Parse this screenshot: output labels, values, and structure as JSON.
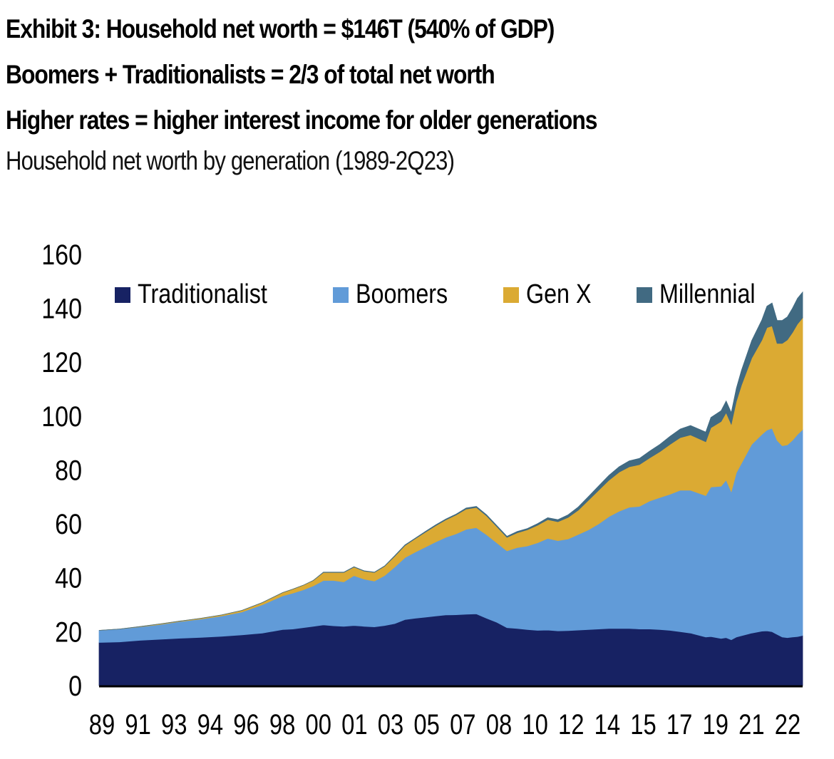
{
  "header": {
    "title_line1": "Exhibit 3: Household net worth = $146T (540% of GDP)",
    "title_line2": "Boomers + Traditionalists = 2/3 of total net worth",
    "title_line3": "Higher rates = higher interest income for older generations",
    "subtitle": "Household net worth by generation (1989-2Q23)"
  },
  "chart_data": {
    "type": "area",
    "stacked": true,
    "title": "Household net worth by generation (1989-2Q23)",
    "xlabel": "",
    "ylabel": "",
    "ylim": [
      0,
      160
    ],
    "yticks": [
      0,
      20,
      40,
      60,
      80,
      100,
      120,
      140,
      160
    ],
    "xtick_labels": [
      "89",
      "91",
      "93",
      "94",
      "96",
      "98",
      "00",
      "01",
      "03",
      "05",
      "07",
      "08",
      "10",
      "12",
      "14",
      "15",
      "17",
      "19",
      "21",
      "22"
    ],
    "xlim": [
      1989.0,
      2023.5
    ],
    "grid": false,
    "legend_position": "top",
    "x": [
      1989.0,
      1990.0,
      1991.0,
      1992.0,
      1993.0,
      1994.0,
      1995.0,
      1996.0,
      1997.0,
      1998.0,
      1998.5,
      1999.0,
      1999.5,
      2000.0,
      2000.5,
      2001.0,
      2001.5,
      2002.0,
      2002.5,
      2003.0,
      2003.5,
      2004.0,
      2004.5,
      2005.0,
      2005.5,
      2006.0,
      2006.5,
      2007.0,
      2007.5,
      2008.0,
      2008.5,
      2009.0,
      2009.5,
      2010.0,
      2010.5,
      2011.0,
      2011.5,
      2012.0,
      2012.5,
      2013.0,
      2013.5,
      2014.0,
      2014.5,
      2015.0,
      2015.5,
      2016.0,
      2016.5,
      2017.0,
      2017.5,
      2018.0,
      2018.75,
      2019.0,
      2019.5,
      2019.75,
      2020.0,
      2020.25,
      2020.5,
      2021.0,
      2021.5,
      2021.75,
      2022.0,
      2022.25,
      2022.5,
      2022.75,
      2023.0,
      2023.25,
      2023.5
    ],
    "series": [
      {
        "name": "Traditionalist",
        "color": "#172263",
        "values": [
          16.0,
          16.2,
          16.8,
          17.2,
          17.6,
          17.9,
          18.3,
          18.8,
          19.5,
          20.8,
          21.0,
          21.5,
          22.0,
          22.5,
          22.2,
          22.0,
          22.3,
          22.0,
          21.8,
          22.3,
          23.0,
          24.5,
          25.0,
          25.4,
          25.8,
          26.2,
          26.3,
          26.5,
          26.6,
          25.0,
          23.5,
          21.5,
          21.2,
          20.8,
          20.5,
          20.6,
          20.3,
          20.4,
          20.6,
          20.8,
          21.0,
          21.2,
          21.2,
          21.2,
          21.0,
          21.0,
          20.8,
          20.5,
          20.0,
          19.5,
          18.0,
          18.2,
          17.5,
          17.8,
          17.0,
          18.0,
          18.5,
          19.5,
          20.2,
          20.3,
          20.0,
          19.0,
          18.0,
          17.8,
          18.0,
          18.2,
          18.6
        ]
      },
      {
        "name": "Boomers",
        "color": "#619BD8",
        "values": [
          4.5,
          4.8,
          5.0,
          5.5,
          6.2,
          6.8,
          7.5,
          8.5,
          10.5,
          12.5,
          13.3,
          14.0,
          15.0,
          16.5,
          16.8,
          16.5,
          18.5,
          17.5,
          17.0,
          18.5,
          21.0,
          23.0,
          24.5,
          26.0,
          27.5,
          28.8,
          30.0,
          31.5,
          32.0,
          31.0,
          29.5,
          28.5,
          30.0,
          31.0,
          32.5,
          34.0,
          33.5,
          34.0,
          35.5,
          37.0,
          39.0,
          41.5,
          43.5,
          45.0,
          45.5,
          47.5,
          49.0,
          50.5,
          52.5,
          53.0,
          52.5,
          55.5,
          56.5,
          58.5,
          55.0,
          61.0,
          64.0,
          70.0,
          73.0,
          74.5,
          75.5,
          72.0,
          71.0,
          71.5,
          73.0,
          75.0,
          76.4
        ]
      },
      {
        "name": "Gen X",
        "color": "#DBAA33",
        "values": [
          0.0,
          0.0,
          0.1,
          0.2,
          0.2,
          0.3,
          0.4,
          0.6,
          0.8,
          1.2,
          1.5,
          1.7,
          2.0,
          3.0,
          3.0,
          3.5,
          3.2,
          3.0,
          3.2,
          3.5,
          4.0,
          4.5,
          5.0,
          5.5,
          6.0,
          6.5,
          7.0,
          7.5,
          7.5,
          7.0,
          6.0,
          5.0,
          5.5,
          6.0,
          6.5,
          7.0,
          7.0,
          8.0,
          9.0,
          11.0,
          12.5,
          13.5,
          14.5,
          15.0,
          15.5,
          16.0,
          17.0,
          18.5,
          19.5,
          20.5,
          20.0,
          22.0,
          24.0,
          25.0,
          25.0,
          26.5,
          29.0,
          32.0,
          35.0,
          38.0,
          38.0,
          36.0,
          38.0,
          39.0,
          40.0,
          41.0,
          41.5
        ]
      },
      {
        "name": "Millennial",
        "color": "#416A82",
        "values": [
          0.0,
          0.0,
          0.0,
          0.0,
          0.0,
          0.0,
          0.0,
          0.0,
          0.0,
          0.0,
          0.0,
          0.0,
          0.0,
          0.1,
          0.1,
          0.1,
          0.1,
          0.1,
          0.1,
          0.1,
          0.2,
          0.2,
          0.2,
          0.3,
          0.3,
          0.3,
          0.3,
          0.4,
          0.4,
          0.4,
          0.4,
          0.4,
          0.5,
          0.5,
          0.6,
          0.7,
          0.8,
          1.0,
          1.2,
          1.4,
          1.6,
          1.8,
          2.0,
          2.2,
          2.3,
          2.5,
          2.7,
          3.0,
          3.2,
          3.5,
          3.6,
          3.8,
          4.0,
          4.3,
          4.3,
          4.8,
          5.5,
          6.5,
          7.5,
          8.0,
          8.5,
          8.5,
          8.5,
          8.5,
          9.0,
          9.5,
          9.5
        ]
      }
    ]
  }
}
